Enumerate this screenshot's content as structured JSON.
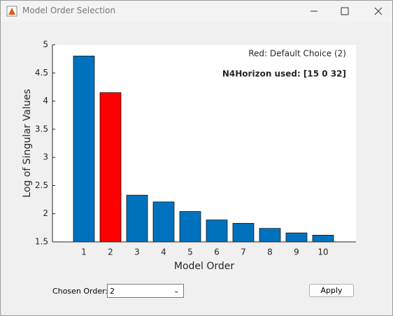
{
  "window": {
    "title": "Model Order Selection"
  },
  "chart_data": {
    "type": "bar",
    "categories": [
      "1",
      "2",
      "3",
      "4",
      "5",
      "6",
      "7",
      "8",
      "9",
      "10"
    ],
    "values": [
      4.8,
      4.15,
      2.33,
      2.21,
      2.04,
      1.89,
      1.83,
      1.74,
      1.66,
      1.62
    ],
    "colors": [
      "#0072bd",
      "#ff0000",
      "#0072bd",
      "#0072bd",
      "#0072bd",
      "#0072bd",
      "#0072bd",
      "#0072bd",
      "#0072bd",
      "#0072bd"
    ],
    "ylim": [
      1.5,
      5
    ],
    "yticks": [
      1.5,
      2,
      2.5,
      3,
      3.5,
      4,
      4.5,
      5
    ],
    "xlabel": "Model Order",
    "ylabel": "Log of Singular Values",
    "annotations": [
      "Red: Default Choice (2)",
      "N4Horizon used: [15 0 32]"
    ]
  },
  "controls": {
    "order_label": "Chosen Order:",
    "order_value": "2",
    "apply": "Apply"
  }
}
